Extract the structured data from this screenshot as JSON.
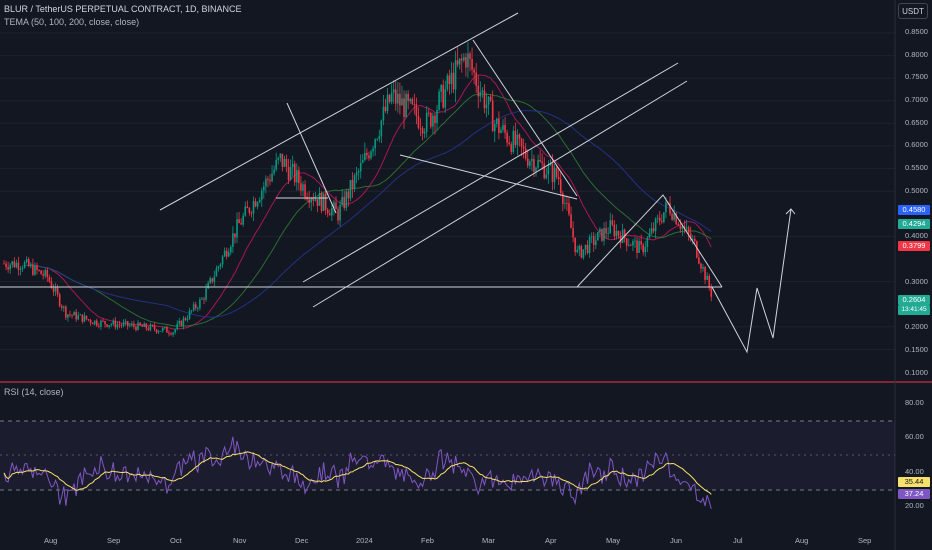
{
  "header": {
    "symbol_line": "BLUR / TetherUS PERPETUAL CONTRACT, 1D, BINANCE",
    "indicator_line": "TEMA (50, 100, 200, close, close)",
    "rsi_label": "RSI (14, close)"
  },
  "currency_button": "USDT",
  "price_axis": [
    "0.8500",
    "0.8000",
    "0.7500",
    "0.7000",
    "0.6500",
    "0.6000",
    "0.5500",
    "0.5000",
    "0.4000",
    "0.3000",
    "0.2000",
    "0.1500",
    "0.1000"
  ],
  "badges": {
    "tema200": {
      "value": "0.4580",
      "color": "#2962ff"
    },
    "tema100": {
      "value": "0.4294",
      "color": "#22ab94"
    },
    "tema50": {
      "value": "0.3799",
      "color": "#f23645"
    },
    "last_price": "0.2604",
    "countdown": "13:41:45",
    "last_color": "#22ab94",
    "rsi_ma": "35.44",
    "rsi_ma_color": "#f7e06a",
    "rsi": "37.24",
    "rsi_color": "#7e57c2"
  },
  "rsi_axis": [
    "80.00",
    "60.00",
    "40.00",
    "20.00"
  ],
  "time_axis": [
    "Aug",
    "Sep",
    "Oct",
    "Nov",
    "Dec",
    "2024",
    "Feb",
    "Mar",
    "Apr",
    "May",
    "Jun",
    "Jul",
    "Aug",
    "Sep"
  ],
  "colors": {
    "background": "#131722",
    "up": "#089981",
    "down": "#f23645",
    "rsi_line": "#7e57c2",
    "rsi_ma": "#f7e06a"
  },
  "chart_data": {
    "type": "candlestick",
    "price_range": [
      0.1,
      0.85
    ],
    "rsi_range": [
      20,
      80
    ],
    "close_samples": [
      [
        "2023-07-20",
        0.34
      ],
      [
        "2023-08-01",
        0.31
      ],
      [
        "2023-08-10",
        0.23
      ],
      [
        "2023-08-25",
        0.21
      ],
      [
        "2023-09-15",
        0.2
      ],
      [
        "2023-10-01",
        0.19
      ],
      [
        "2023-10-15",
        0.26
      ],
      [
        "2023-11-01",
        0.42
      ],
      [
        "2023-11-22",
        0.57
      ],
      [
        "2023-12-05",
        0.5
      ],
      [
        "2023-12-20",
        0.45
      ],
      [
        "2024-01-01",
        0.56
      ],
      [
        "2024-01-15",
        0.71
      ],
      [
        "2024-02-01",
        0.65
      ],
      [
        "2024-02-20",
        0.8
      ],
      [
        "2024-03-05",
        0.65
      ],
      [
        "2024-03-20",
        0.58
      ],
      [
        "2024-04-05",
        0.53
      ],
      [
        "2024-04-14",
        0.36
      ],
      [
        "2024-04-30",
        0.42
      ],
      [
        "2024-05-15",
        0.37
      ],
      [
        "2024-05-28",
        0.47
      ],
      [
        "2024-06-10",
        0.38
      ],
      [
        "2024-06-19",
        0.26
      ]
    ]
  }
}
